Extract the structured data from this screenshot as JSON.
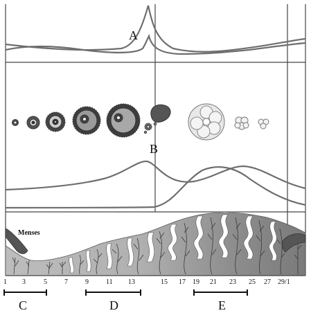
{
  "labels": {
    "a": "A",
    "b": "B",
    "c": "C",
    "d": "D",
    "e": "E",
    "menses": "Menses"
  },
  "days": [
    "1",
    "3",
    "5",
    "7",
    "9",
    "11",
    "13",
    "15",
    "17",
    "19",
    "21",
    "23",
    "25",
    "27",
    "29/1"
  ],
  "colors": {
    "line": "#6e6e6e",
    "frame": "#444444",
    "tissue_light": "#b4b4b4",
    "tissue_dark": "#7a7a7a",
    "vessel": "#3a3a3a",
    "menses": "#555555"
  }
}
